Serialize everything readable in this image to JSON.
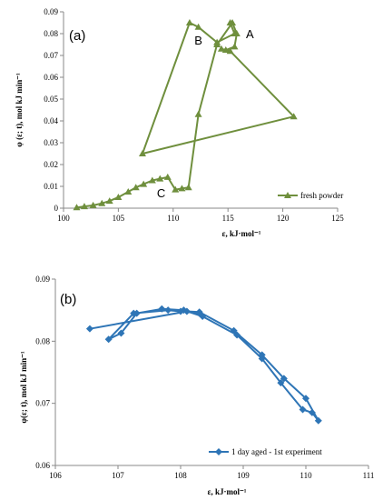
{
  "chart_data": [
    {
      "type": "line",
      "panel_label": "(a)",
      "xlabel": "ε, kJ·mol⁻¹",
      "ylabel": "φ (ε; t), mol kJ min⁻¹",
      "xlim": [
        100,
        125
      ],
      "ylim": [
        0,
        0.09
      ],
      "x_ticks": [
        "100",
        "105",
        "110",
        "115",
        "120",
        "125"
      ],
      "y_ticks": [
        "0",
        "0.01",
        "0.02",
        "0.03",
        "0.04",
        "0.05",
        "0.06",
        "0.07",
        "0.08",
        "0.09"
      ],
      "grid": false,
      "legend_position": "bottom-right",
      "color": "#6f8f3d",
      "series": [
        {
          "name": "fresh powder",
          "x": [
            101.2,
            101.9,
            102.7,
            103.5,
            104.2,
            105.0,
            105.9,
            106.6,
            107.3,
            108.1,
            108.8,
            109.5,
            110.2,
            110.8,
            111.4,
            112.3,
            114.0,
            115.4,
            115.8,
            115.6,
            114.8,
            114.4,
            115.2,
            121.0,
            107.2,
            111.5,
            112.3,
            114.0,
            115.6,
            115.2
          ],
          "y": [
            0.0003,
            0.0008,
            0.0013,
            0.0022,
            0.0033,
            0.005,
            0.0075,
            0.0095,
            0.011,
            0.0127,
            0.0135,
            0.0142,
            0.0085,
            0.009,
            0.0095,
            0.043,
            0.075,
            0.085,
            0.08,
            0.074,
            0.0725,
            0.073,
            0.072,
            0.042,
            0.025,
            0.085,
            0.083,
            0.076,
            0.08,
            0.085
          ]
        }
      ],
      "annotations": [
        {
          "text": "A",
          "x": 117.0,
          "y": 0.078
        },
        {
          "text": "B",
          "x": 112.3,
          "y": 0.075
        },
        {
          "text": "C",
          "x": 108.9,
          "y": 0.005
        }
      ]
    },
    {
      "type": "line",
      "panel_label": "(b)",
      "xlabel": "ε, kJ·mol⁻¹",
      "ylabel": "φ(ε; t), mol kJ min⁻¹",
      "xlim": [
        106,
        111
      ],
      "ylim": [
        0.06,
        0.09
      ],
      "x_ticks": [
        "106",
        "107",
        "108",
        "109",
        "110",
        "111"
      ],
      "y_ticks": [
        "0.06",
        "0.07",
        "0.08",
        "0.09"
      ],
      "grid": false,
      "legend_position": "bottom-right",
      "color": "#2e75b6",
      "series": [
        {
          "name": "1 day aged - 1st experiment",
          "x": [
            106.55,
            108.1,
            108.3,
            108.85,
            109.3,
            109.65,
            110.0,
            110.2,
            110.1,
            109.95,
            109.6,
            109.3,
            108.9,
            108.35,
            108.05,
            107.7,
            107.3,
            107.05,
            106.85,
            107.25,
            107.8,
            108.0,
            108.3
          ],
          "y": [
            0.082,
            0.0848,
            0.0847,
            0.0817,
            0.0778,
            0.074,
            0.0708,
            0.0672,
            0.0685,
            0.069,
            0.0733,
            0.0772,
            0.081,
            0.084,
            0.085,
            0.0852,
            0.0845,
            0.0813,
            0.0803,
            0.0845,
            0.085,
            0.0848,
            0.0845
          ]
        }
      ]
    }
  ]
}
